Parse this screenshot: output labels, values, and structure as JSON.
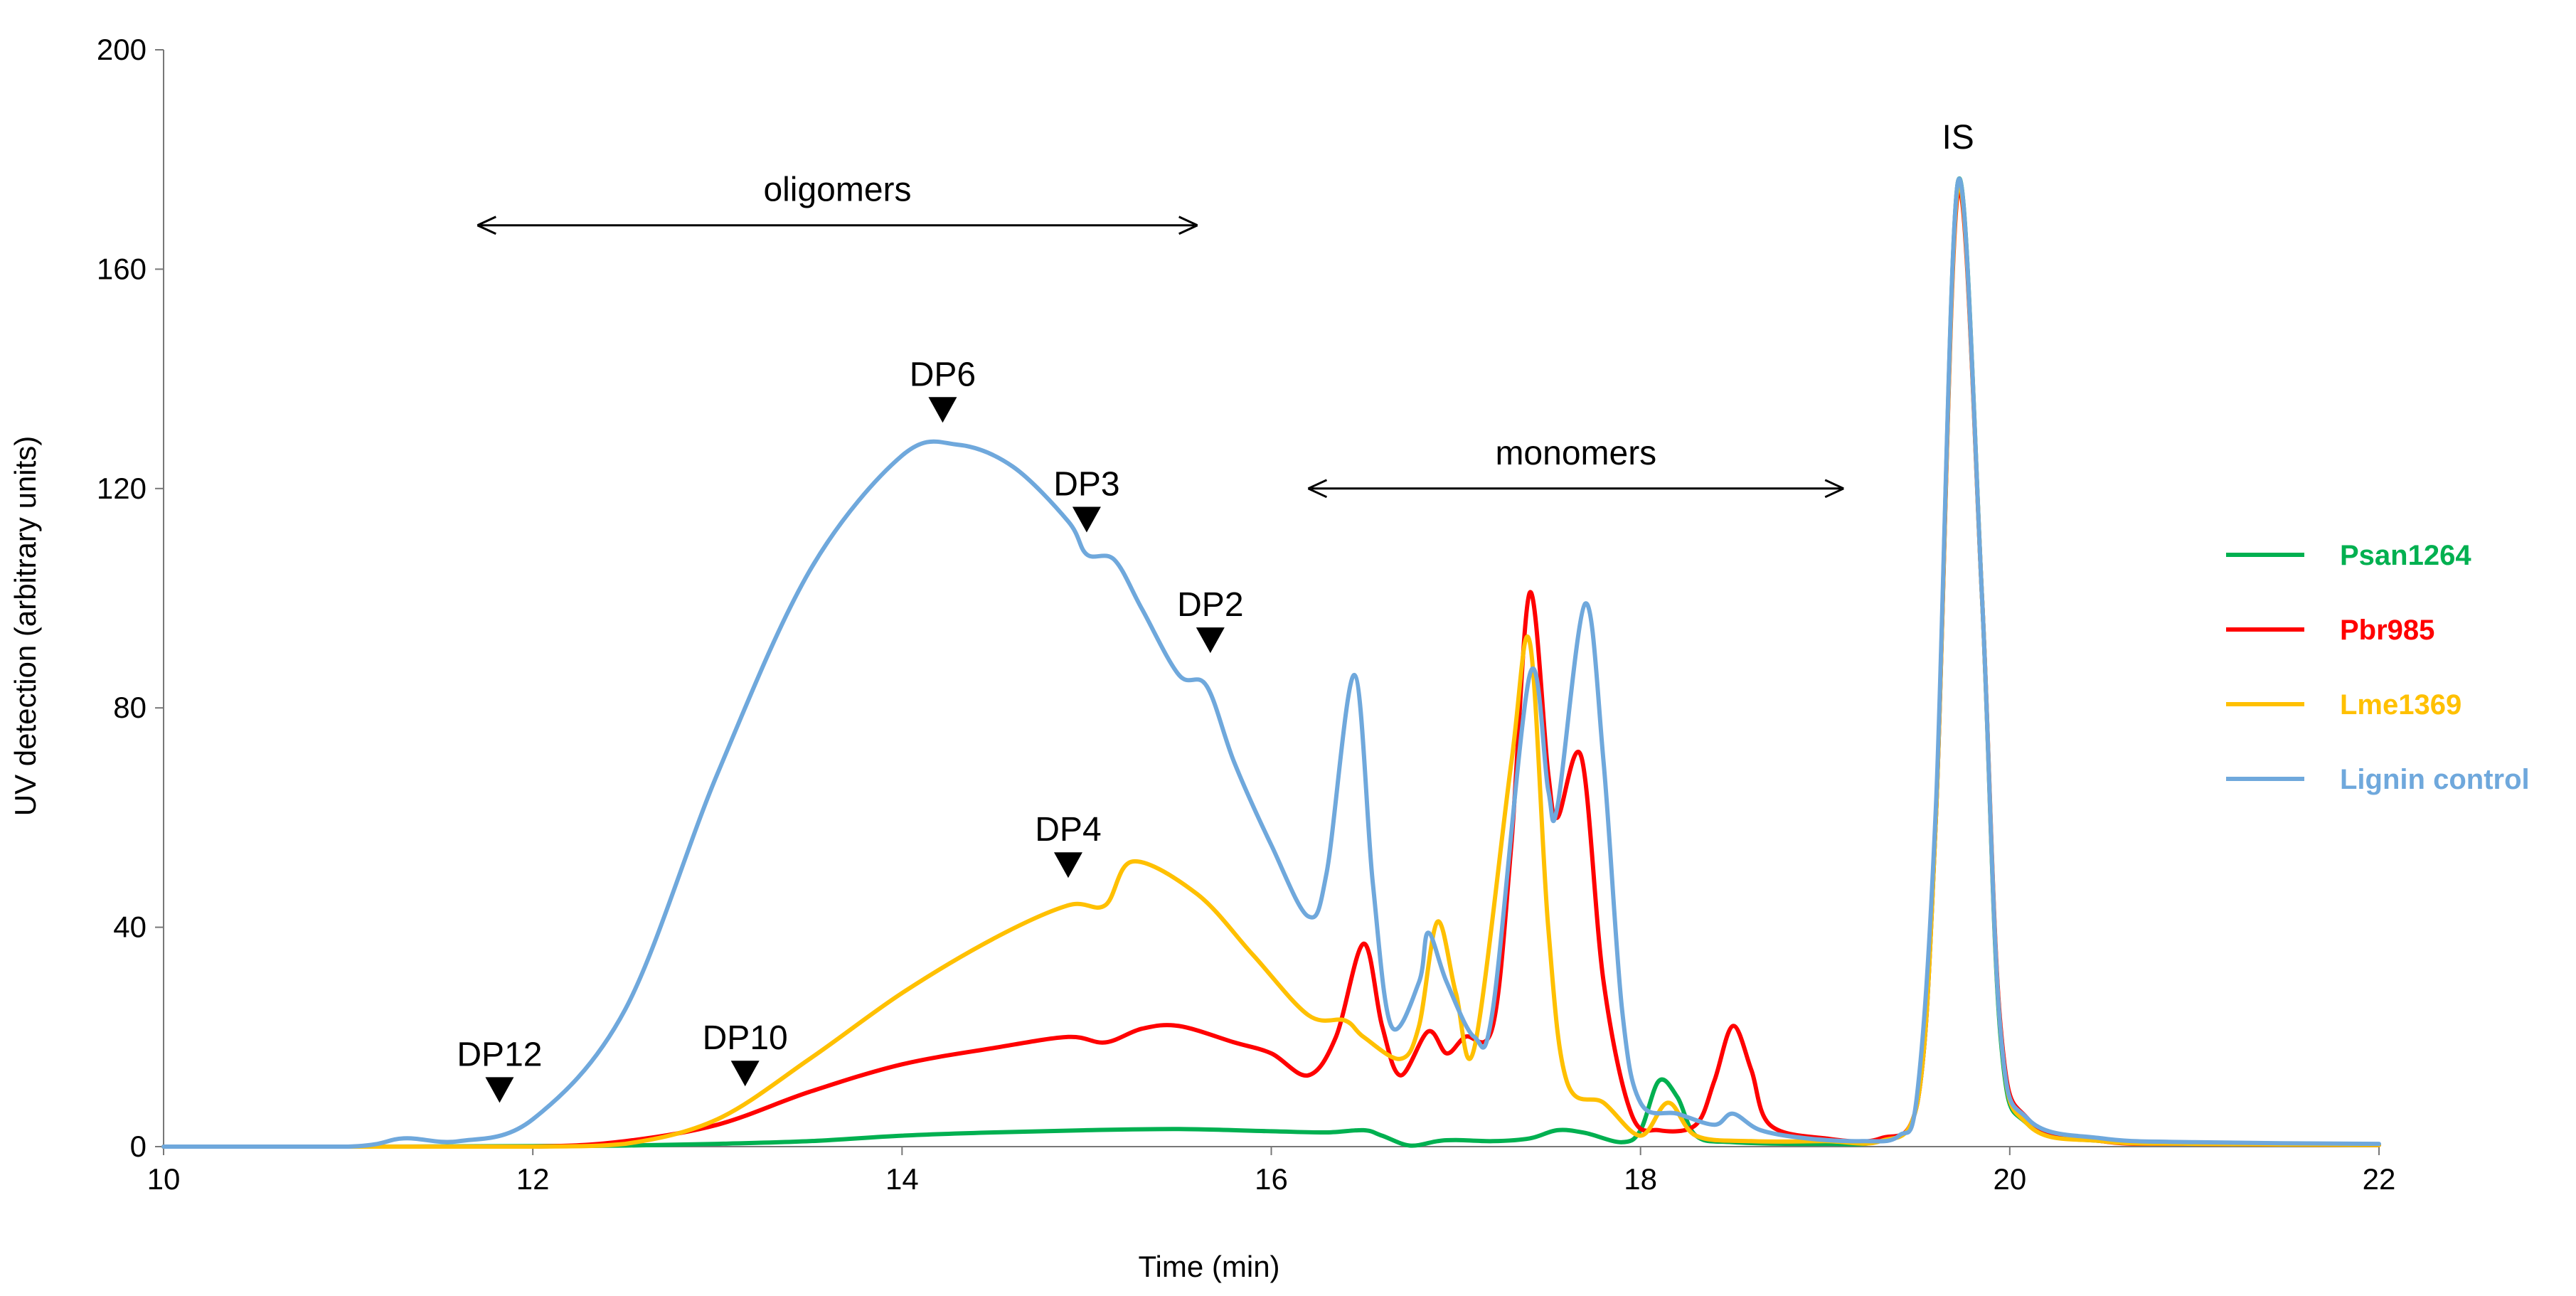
{
  "chart_data": {
    "type": "line",
    "title": "",
    "xlabel": "Time (min)",
    "ylabel": "UV detection (arbitrary units)",
    "xlim": [
      10,
      22
    ],
    "ylim": [
      0,
      200
    ],
    "x_ticks": [
      10,
      12,
      14,
      16,
      18,
      20,
      22
    ],
    "y_ticks": [
      0,
      40,
      80,
      120,
      160,
      200
    ],
    "grid": false,
    "legend_position": "right",
    "series": [
      {
        "name": "Psan1264",
        "color": "#00b050",
        "points": [
          [
            10,
            0
          ],
          [
            11,
            0
          ],
          [
            12,
            0.1
          ],
          [
            12.5,
            0.2
          ],
          [
            13,
            0.5
          ],
          [
            13.5,
            1
          ],
          [
            14,
            2
          ],
          [
            14.5,
            2.6
          ],
          [
            15,
            3
          ],
          [
            15.5,
            3.2
          ],
          [
            16,
            2.8
          ],
          [
            16.3,
            2.6
          ],
          [
            16.5,
            3
          ],
          [
            16.6,
            2
          ],
          [
            16.75,
            0.2
          ],
          [
            16.9,
            1
          ],
          [
            17,
            1.2
          ],
          [
            17.2,
            1
          ],
          [
            17.4,
            1.5
          ],
          [
            17.55,
            3
          ],
          [
            17.7,
            2.5
          ],
          [
            17.9,
            0.8
          ],
          [
            18,
            3
          ],
          [
            18.1,
            12
          ],
          [
            18.2,
            9
          ],
          [
            18.3,
            2
          ],
          [
            18.5,
            0.8
          ],
          [
            19,
            0.5
          ],
          [
            19.3,
            1.2
          ],
          [
            19.5,
            8
          ],
          [
            19.6,
            60
          ],
          [
            19.72,
            176
          ],
          [
            19.85,
            100
          ],
          [
            19.95,
            20
          ],
          [
            20.1,
            4
          ],
          [
            20.5,
            1
          ],
          [
            21,
            0.5
          ],
          [
            22,
            0.3
          ]
        ]
      },
      {
        "name": "Pbr985",
        "color": "#ff0000",
        "points": [
          [
            10,
            0
          ],
          [
            11,
            0
          ],
          [
            12,
            0
          ],
          [
            12.5,
            1
          ],
          [
            13,
            4
          ],
          [
            13.5,
            10
          ],
          [
            14,
            15
          ],
          [
            14.5,
            18
          ],
          [
            14.9,
            20
          ],
          [
            15.1,
            19
          ],
          [
            15.3,
            21.5
          ],
          [
            15.5,
            22
          ],
          [
            15.8,
            19
          ],
          [
            16,
            17
          ],
          [
            16.2,
            13
          ],
          [
            16.35,
            20
          ],
          [
            16.5,
            37
          ],
          [
            16.6,
            22
          ],
          [
            16.7,
            13
          ],
          [
            16.85,
            21
          ],
          [
            16.95,
            17
          ],
          [
            17.05,
            20
          ],
          [
            17.2,
            22
          ],
          [
            17.3,
            55
          ],
          [
            17.4,
            101
          ],
          [
            17.5,
            68
          ],
          [
            17.55,
            60
          ],
          [
            17.68,
            71
          ],
          [
            17.8,
            30
          ],
          [
            17.95,
            6
          ],
          [
            18.1,
            3
          ],
          [
            18.3,
            4
          ],
          [
            18.4,
            12
          ],
          [
            18.5,
            22
          ],
          [
            18.6,
            14
          ],
          [
            18.7,
            4
          ],
          [
            19,
            1.5
          ],
          [
            19.3,
            1.5
          ],
          [
            19.5,
            8
          ],
          [
            19.6,
            60
          ],
          [
            19.72,
            174
          ],
          [
            19.85,
            100
          ],
          [
            19.95,
            22
          ],
          [
            20.1,
            5
          ],
          [
            20.5,
            1
          ],
          [
            21,
            0.5
          ],
          [
            22,
            0.3
          ]
        ]
      },
      {
        "name": "Lme1369",
        "color": "#ffc000",
        "points": [
          [
            10,
            0
          ],
          [
            11,
            0
          ],
          [
            12,
            0
          ],
          [
            12.5,
            0.5
          ],
          [
            13,
            5
          ],
          [
            13.5,
            16
          ],
          [
            14,
            28
          ],
          [
            14.5,
            38
          ],
          [
            14.9,
            44
          ],
          [
            15.1,
            44
          ],
          [
            15.25,
            52
          ],
          [
            15.6,
            46
          ],
          [
            15.9,
            35
          ],
          [
            16.2,
            24
          ],
          [
            16.4,
            23
          ],
          [
            16.5,
            20
          ],
          [
            16.7,
            16
          ],
          [
            16.8,
            22
          ],
          [
            16.9,
            41
          ],
          [
            17,
            28
          ],
          [
            17.1,
            18
          ],
          [
            17.3,
            70
          ],
          [
            17.4,
            92
          ],
          [
            17.5,
            40
          ],
          [
            17.6,
            12
          ],
          [
            17.8,
            8
          ],
          [
            18,
            2
          ],
          [
            18.15,
            8
          ],
          [
            18.3,
            2
          ],
          [
            18.6,
            1
          ],
          [
            19,
            1
          ],
          [
            19.3,
            1
          ],
          [
            19.5,
            8
          ],
          [
            19.6,
            60
          ],
          [
            19.72,
            175
          ],
          [
            19.85,
            100
          ],
          [
            19.95,
            21
          ],
          [
            20.1,
            4
          ],
          [
            20.5,
            1
          ],
          [
            21,
            0.5
          ],
          [
            22,
            0.3
          ]
        ]
      },
      {
        "name": "Lignin control",
        "color": "#6fa8dc",
        "points": [
          [
            10,
            0
          ],
          [
            11,
            0
          ],
          [
            11.3,
            1.5
          ],
          [
            11.6,
            1
          ],
          [
            12,
            5
          ],
          [
            12.5,
            25
          ],
          [
            13,
            68
          ],
          [
            13.5,
            105
          ],
          [
            14,
            126
          ],
          [
            14.3,
            128
          ],
          [
            14.6,
            124
          ],
          [
            14.9,
            114
          ],
          [
            15,
            108
          ],
          [
            15.15,
            107
          ],
          [
            15.3,
            98
          ],
          [
            15.5,
            86
          ],
          [
            15.65,
            84
          ],
          [
            15.8,
            70
          ],
          [
            16,
            55
          ],
          [
            16.2,
            42
          ],
          [
            16.3,
            50
          ],
          [
            16.45,
            86
          ],
          [
            16.55,
            48
          ],
          [
            16.65,
            22
          ],
          [
            16.8,
            30
          ],
          [
            16.85,
            39
          ],
          [
            16.95,
            30
          ],
          [
            17.1,
            20
          ],
          [
            17.2,
            25
          ],
          [
            17.4,
            86
          ],
          [
            17.5,
            65
          ],
          [
            17.55,
            62
          ],
          [
            17.7,
            99
          ],
          [
            17.8,
            70
          ],
          [
            17.9,
            25
          ],
          [
            18,
            8
          ],
          [
            18.2,
            6
          ],
          [
            18.4,
            4
          ],
          [
            18.5,
            6
          ],
          [
            18.65,
            3
          ],
          [
            18.9,
            1.5
          ],
          [
            19.2,
            1
          ],
          [
            19.4,
            2
          ],
          [
            19.5,
            10
          ],
          [
            19.6,
            62
          ],
          [
            19.72,
            176
          ],
          [
            19.85,
            100
          ],
          [
            19.95,
            21
          ],
          [
            20.1,
            5
          ],
          [
            20.5,
            1.5
          ],
          [
            21,
            0.8
          ],
          [
            22,
            0.5
          ]
        ]
      }
    ],
    "annotations": {
      "peaks": [
        {
          "label": "DP12",
          "x": 11.82,
          "y": 8
        },
        {
          "label": "DP10",
          "x": 13.15,
          "y": 11
        },
        {
          "label": "DP6",
          "x": 14.22,
          "y": 132
        },
        {
          "label": "DP4",
          "x": 14.9,
          "y": 49
        },
        {
          "label": "DP3",
          "x": 15.0,
          "y": 112
        },
        {
          "label": "DP2",
          "x": 15.67,
          "y": 90
        }
      ],
      "is_label": {
        "text": "IS",
        "x": 19.72,
        "y": 182
      },
      "ranges": [
        {
          "label": "oligomers",
          "x_start": 11.7,
          "x_end": 15.6,
          "y": 168
        },
        {
          "label": "monomers",
          "x_start": 16.2,
          "x_end": 19.1,
          "y": 120
        }
      ]
    }
  }
}
